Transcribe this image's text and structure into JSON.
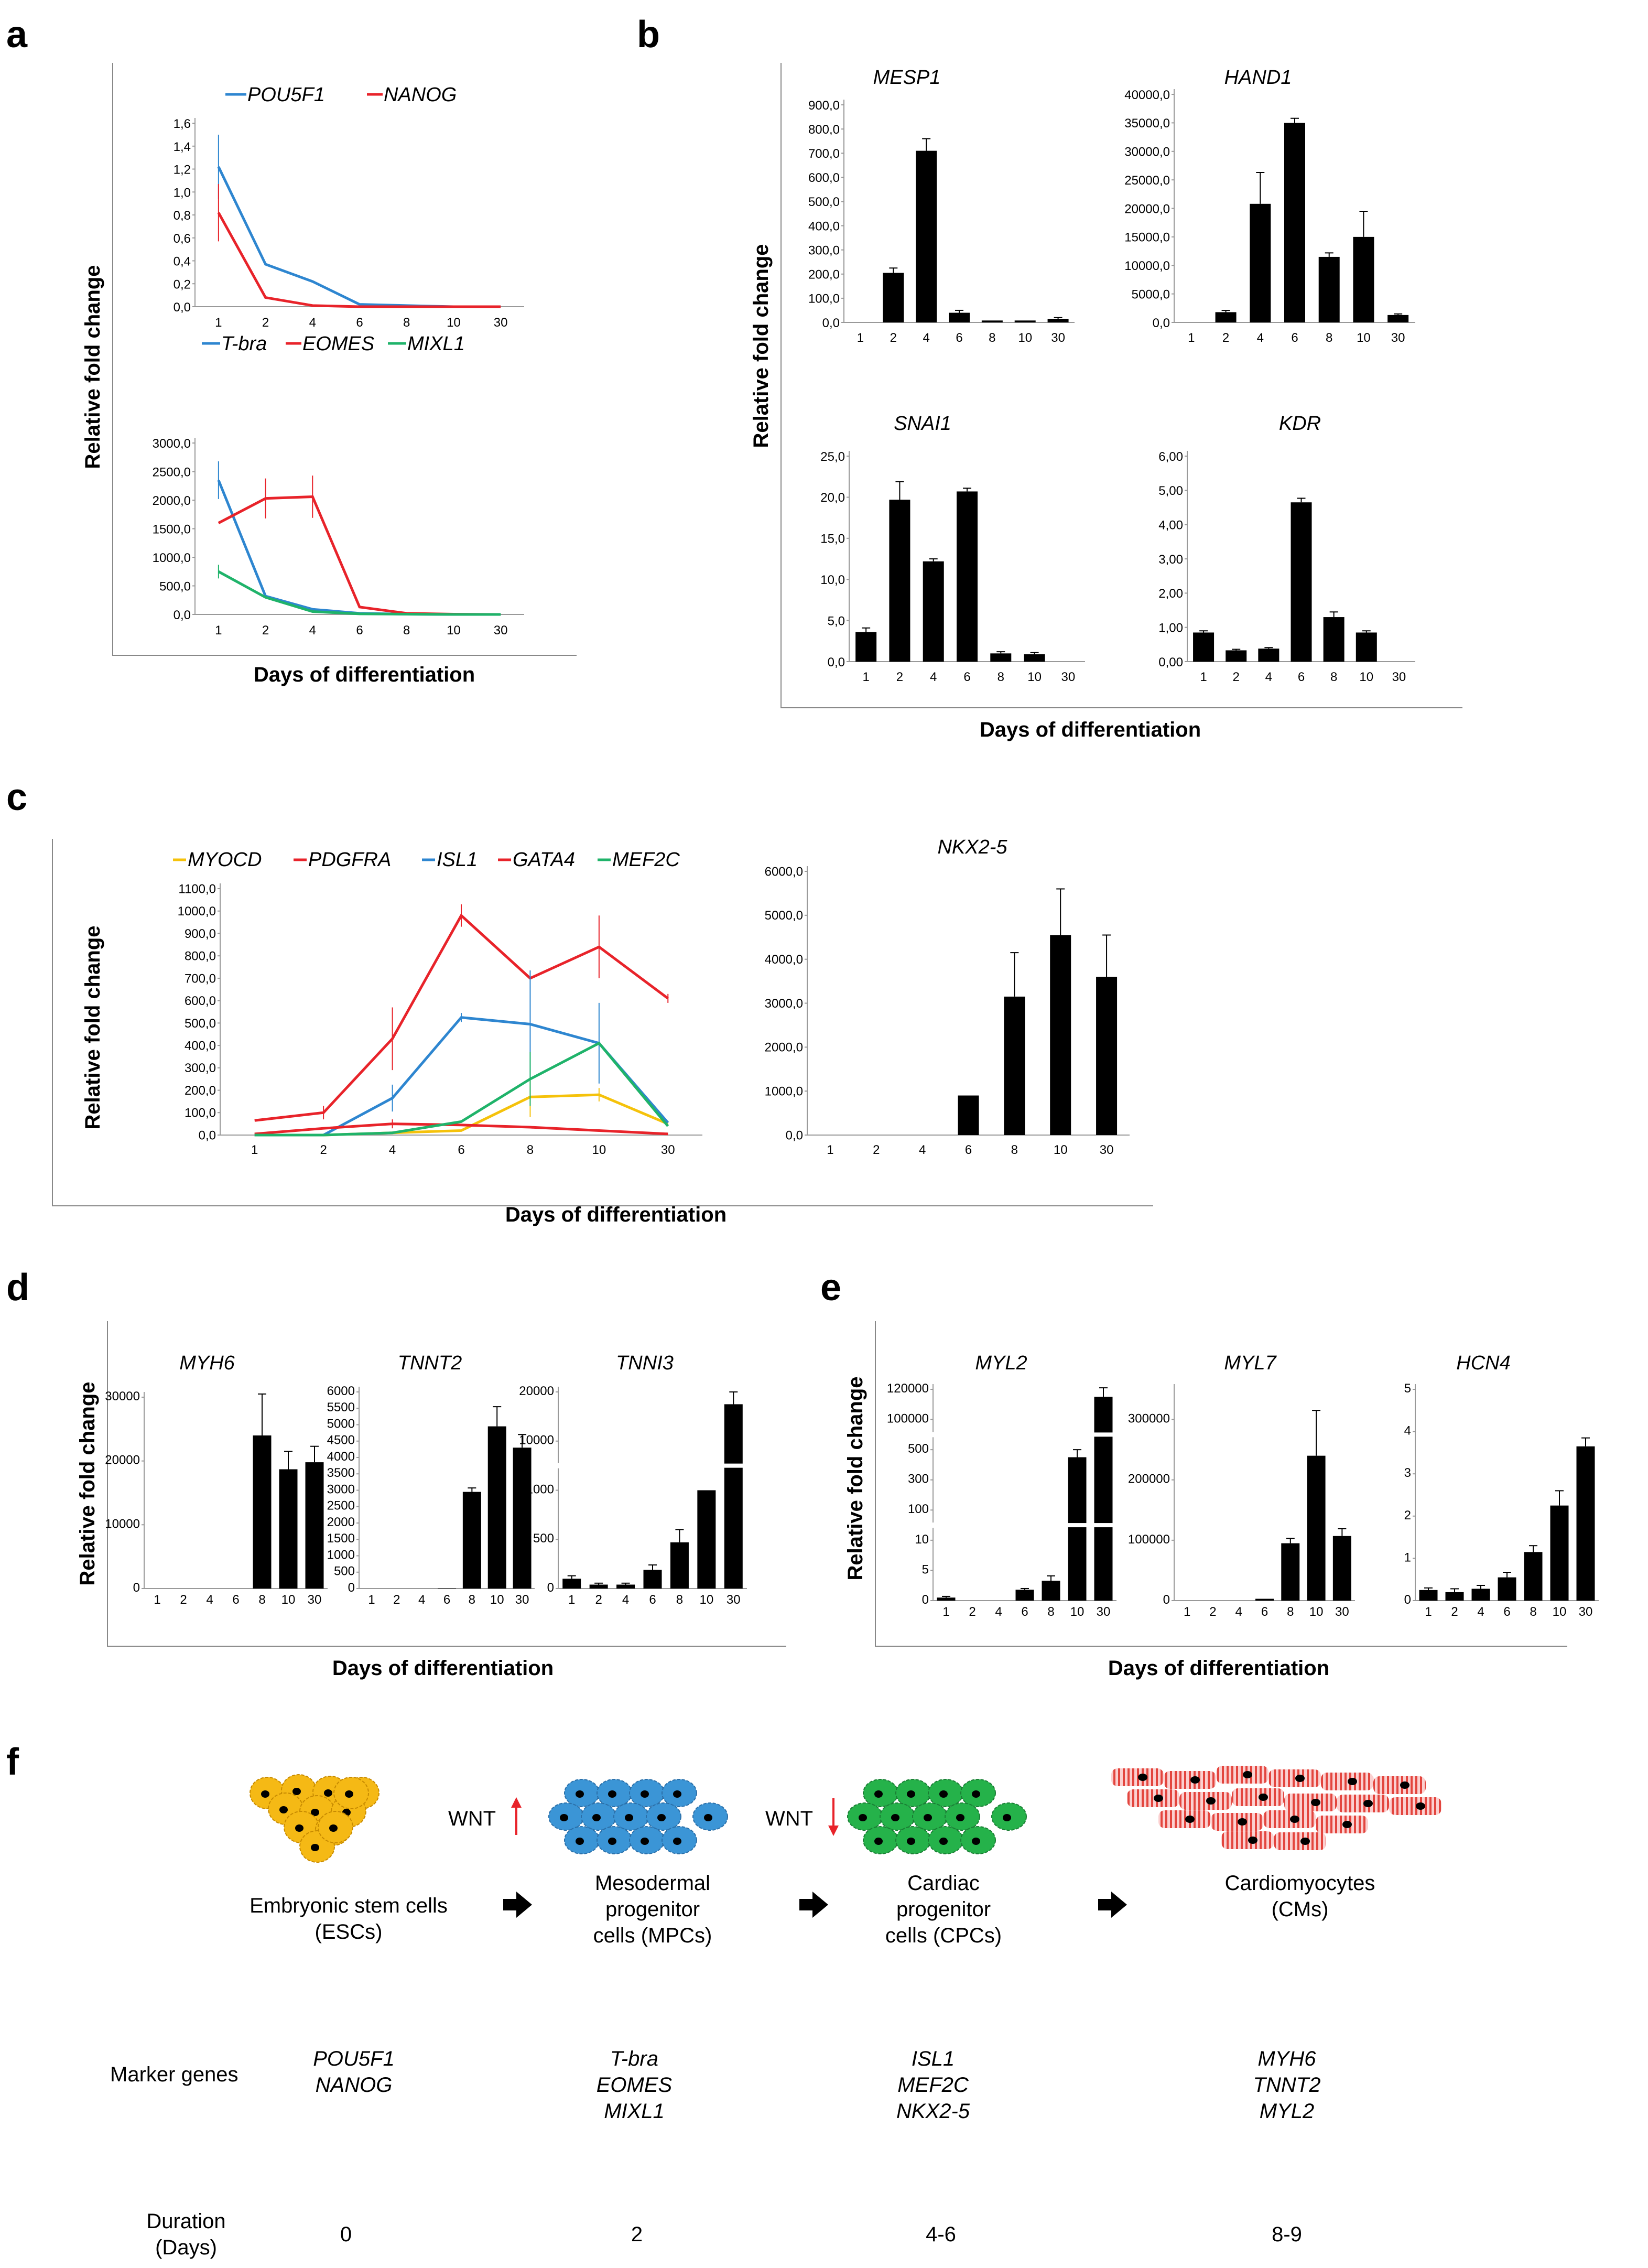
{
  "panel_labels": {
    "a": "a",
    "b": "b",
    "c": "c",
    "d": "d",
    "e": "e",
    "f": "f"
  },
  "axis_labels": {
    "y": "Relative fold change",
    "x": "Days of differentiation"
  },
  "colors": {
    "blue": "#2e86d0",
    "red": "#e8232a",
    "green": "#1fb36a",
    "yellow": "#f5c20b",
    "black": "#000000",
    "esc": "#f5b915",
    "mpc": "#3b95d6",
    "cpc": "#25b24a",
    "cm": "#f08c8c"
  },
  "chart_data": [
    {
      "id": "a1",
      "type": "line",
      "categories": [
        "1",
        "2",
        "4",
        "6",
        "8",
        "10",
        "30"
      ],
      "ylim": [
        0,
        1.6
      ],
      "yticks": [
        "0,0",
        "0,2",
        "0,4",
        "0,6",
        "0,8",
        "1,0",
        "1,2",
        "1,4",
        "1,6"
      ],
      "series": [
        {
          "name": "POU5F1",
          "color": "blue",
          "values": [
            1.22,
            0.37,
            0.22,
            0.02,
            0.01,
            0.0,
            0.0
          ],
          "err": [
            0.28,
            0,
            0,
            0,
            0,
            0,
            0
          ]
        },
        {
          "name": "NANOG",
          "color": "red",
          "values": [
            0.82,
            0.08,
            0.01,
            0.0,
            0.0,
            0.0,
            0.0
          ],
          "err": [
            0.25,
            0,
            0,
            0,
            0,
            0,
            0
          ]
        }
      ]
    },
    {
      "id": "a2",
      "type": "line",
      "categories": [
        "1",
        "2",
        "4",
        "6",
        "8",
        "10",
        "30"
      ],
      "ylim": [
        0,
        3000
      ],
      "yticks": [
        "0,0",
        "500,0",
        "1000,0",
        "1500,0",
        "2000,0",
        "2500,0",
        "3000,0"
      ],
      "series": [
        {
          "name": "T-bra",
          "color": "blue",
          "values": [
            2350,
            320,
            90,
            20,
            5,
            0,
            0
          ],
          "err": [
            330,
            0,
            0,
            0,
            0,
            0,
            0
          ]
        },
        {
          "name": "EOMES",
          "color": "red",
          "values": [
            1600,
            2030,
            2060,
            130,
            20,
            5,
            0
          ],
          "err": [
            0,
            350,
            370,
            0,
            0,
            0,
            0
          ]
        },
        {
          "name": "MIXL1",
          "color": "green",
          "values": [
            750,
            300,
            50,
            10,
            5,
            0,
            0
          ],
          "err": [
            120,
            0,
            0,
            0,
            0,
            0,
            0
          ]
        }
      ]
    },
    {
      "id": "b1",
      "type": "bar",
      "title": "MESP1",
      "categories": [
        "1",
        "2",
        "4",
        "6",
        "8",
        "10",
        "30"
      ],
      "ylim": [
        0,
        900
      ],
      "yticks": [
        "0,0",
        "100,0",
        "200,0",
        "300,0",
        "400,0",
        "500,0",
        "600,0",
        "700,0",
        "800,0",
        "900,0"
      ],
      "values": [
        0,
        205,
        710,
        40,
        8,
        8,
        15
      ],
      "err": [
        0,
        20,
        50,
        10,
        0,
        0,
        5
      ]
    },
    {
      "id": "b2",
      "type": "bar",
      "title": "HAND1",
      "categories": [
        "1",
        "2",
        "4",
        "6",
        "8",
        "10",
        "30"
      ],
      "ylim": [
        0,
        40000
      ],
      "yticks": [
        "0,0",
        "5000,0",
        "10000,0",
        "15000,0",
        "20000,0",
        "25000,0",
        "30000,0",
        "35000,0",
        "40000,0"
      ],
      "values": [
        0,
        1800,
        20800,
        35000,
        11500,
        15000,
        1300
      ],
      "err": [
        0,
        300,
        5500,
        800,
        700,
        4500,
        200
      ]
    },
    {
      "id": "b3",
      "type": "bar",
      "title": "SNAI1",
      "categories": [
        "1",
        "2",
        "4",
        "6",
        "8",
        "10",
        "30"
      ],
      "ylim": [
        0,
        25
      ],
      "yticks": [
        "0,0",
        "5,0",
        "10,0",
        "15,0",
        "20,0",
        "25,0"
      ],
      "values": [
        3.6,
        19.7,
        12.2,
        20.7,
        1.0,
        0.9,
        0
      ],
      "err": [
        0.5,
        2.2,
        0.3,
        0.4,
        0.2,
        0.2,
        0
      ]
    },
    {
      "id": "b4",
      "type": "bar",
      "title": "KDR",
      "categories": [
        "1",
        "2",
        "4",
        "6",
        "8",
        "10",
        "30"
      ],
      "ylim": [
        0,
        6
      ],
      "yticks": [
        "0,00",
        "1,00",
        "2,00",
        "3,00",
        "4,00",
        "5,00",
        "6,00"
      ],
      "values": [
        0.85,
        0.33,
        0.38,
        4.65,
        1.3,
        0.85,
        0
      ],
      "err": [
        0.05,
        0.03,
        0.03,
        0.12,
        0.15,
        0.05,
        0
      ]
    },
    {
      "id": "c1",
      "type": "line",
      "categories": [
        "1",
        "2",
        "4",
        "6",
        "8",
        "10",
        "30"
      ],
      "ylim": [
        0,
        1100
      ],
      "yticks": [
        "0,0",
        "100,0",
        "200,0",
        "300,0",
        "400,0",
        "500,0",
        "600,0",
        "700,0",
        "800,0",
        "900,0",
        "1000,0",
        "1100,0"
      ],
      "series": [
        {
          "name": "MYOCD",
          "color": "yellow",
          "values": [
            0,
            0,
            10,
            20,
            170,
            180,
            50
          ],
          "err": [
            0,
            0,
            0,
            0,
            90,
            30,
            0
          ]
        },
        {
          "name": "PDGFRA",
          "color": "red",
          "values": [
            65,
            100,
            430,
            980,
            700,
            840,
            610
          ],
          "err": [
            0,
            30,
            140,
            50,
            0,
            140,
            20
          ]
        },
        {
          "name": "ISL1",
          "color": "blue",
          "values": [
            0,
            0,
            165,
            525,
            495,
            410,
            55
          ],
          "err": [
            0,
            0,
            60,
            20,
            240,
            180,
            0
          ]
        },
        {
          "name": "GATA4",
          "color": "red",
          "values": [
            5,
            30,
            50,
            45,
            35,
            20,
            5
          ],
          "err": [
            0,
            0,
            20,
            0,
            0,
            0,
            0
          ]
        },
        {
          "name": "MEF2C",
          "color": "green",
          "values": [
            0,
            0,
            10,
            60,
            250,
            410,
            40
          ],
          "err": [
            0,
            0,
            0,
            0,
            120,
            0,
            0
          ]
        }
      ]
    },
    {
      "id": "c2",
      "type": "bar",
      "title": "NKX2-5",
      "categories": [
        "1",
        "2",
        "4",
        "6",
        "8",
        "10",
        "30"
      ],
      "ylim": [
        0,
        6000
      ],
      "yticks": [
        "0,0",
        "1000,0",
        "2000,0",
        "3000,0",
        "4000,0",
        "5000,0",
        "6000,0"
      ],
      "values": [
        0,
        0,
        0,
        900,
        3150,
        4550,
        3600
      ],
      "err": [
        0,
        0,
        0,
        0,
        1000,
        1050,
        950
      ]
    },
    {
      "id": "d1",
      "type": "bar",
      "title": "MYH6",
      "categories": [
        "1",
        "2",
        "4",
        "6",
        "8",
        "10",
        "30"
      ],
      "ylim": [
        0,
        30000
      ],
      "yticks": [
        "0",
        "10000",
        "20000",
        "30000"
      ],
      "values": [
        0,
        0,
        0,
        0,
        24000,
        18700,
        19800
      ],
      "err": [
        0,
        0,
        0,
        0,
        6500,
        2800,
        2500
      ]
    },
    {
      "id": "d2",
      "type": "bar",
      "title": "TNNT2",
      "categories": [
        "1",
        "2",
        "4",
        "6",
        "8",
        "10",
        "30"
      ],
      "ylim": [
        0,
        6000
      ],
      "yticks": [
        "0",
        "500",
        "1000",
        "1500",
        "2000",
        "2500",
        "3000",
        "3500",
        "4000",
        "4500",
        "5000",
        "5500",
        "6000"
      ],
      "values": [
        0,
        0,
        0,
        10,
        2950,
        4950,
        4300
      ],
      "err": [
        0,
        0,
        0,
        0,
        120,
        600,
        400
      ]
    },
    {
      "id": "d3",
      "type": "bar",
      "title": "TNNI3",
      "categories": [
        "1",
        "2",
        "4",
        "6",
        "8",
        "10",
        "30"
      ],
      "yticks": [
        "0",
        "500",
        "1000",
        "10000",
        "20000"
      ],
      "values": [
        100,
        40,
        40,
        190,
        470,
        1000,
        17500
      ],
      "err": [
        30,
        15,
        15,
        50,
        130,
        0,
        2500
      ],
      "broken_axis": true
    },
    {
      "id": "e1",
      "type": "bar",
      "title": "MYL2",
      "categories": [
        "1",
        "2",
        "4",
        "6",
        "8",
        "10",
        "30"
      ],
      "yticks": [
        "0",
        "5",
        "10",
        "100",
        "300",
        "500",
        "100000",
        "120000"
      ],
      "values": [
        0.5,
        0,
        0,
        1.8,
        3.3,
        450,
        115000
      ],
      "err": [
        0.2,
        0,
        0,
        0.2,
        0.8,
        60,
        12000
      ],
      "broken_axis": true
    },
    {
      "id": "e2",
      "type": "bar",
      "title": "MYL7",
      "categories": [
        "1",
        "2",
        "4",
        "6",
        "8",
        "10",
        "30"
      ],
      "ylim": [
        0,
        350000
      ],
      "yticks": [
        "0",
        "100000",
        "200000",
        "300000"
      ],
      "values": [
        0,
        0,
        0,
        3000,
        95000,
        240000,
        107000
      ],
      "err": [
        0,
        0,
        0,
        0,
        8000,
        75000,
        12000
      ]
    },
    {
      "id": "e3",
      "type": "bar",
      "title": "HCN4",
      "categories": [
        "1",
        "2",
        "4",
        "6",
        "8",
        "10",
        "30"
      ],
      "ylim": [
        0,
        5
      ],
      "yticks": [
        "0",
        "1",
        "2",
        "3",
        "4",
        "5"
      ],
      "values": [
        0.25,
        0.2,
        0.28,
        0.55,
        1.15,
        2.25,
        3.65
      ],
      "err": [
        0.05,
        0.08,
        0.08,
        0.12,
        0.15,
        0.35,
        0.2
      ]
    }
  ],
  "schematic": {
    "stages": [
      {
        "id": "esc",
        "name_line1": "Embryonic stem cells",
        "name_line2": "(ESCs)",
        "markers": [
          "POU5F1",
          "NANOG"
        ],
        "duration": "0"
      },
      {
        "id": "mpc",
        "name_lines": [
          "Mesodermal",
          "progenitor",
          "cells (MPCs)"
        ],
        "markers": [
          "T-bra",
          "EOMES",
          "MIXL1"
        ],
        "duration": "2"
      },
      {
        "id": "cpc",
        "name_lines": [
          "Cardiac",
          "progenitor",
          "cells (CPCs)"
        ],
        "markers": [
          "ISL1",
          "MEF2C",
          "NKX2-5"
        ],
        "duration": "4-6"
      },
      {
        "id": "cm",
        "name_line1": "Cardiomyocytes",
        "name_line2": "(CMs)",
        "markers": [
          "MYH6",
          "TNNT2",
          "MYL2"
        ],
        "duration": "8-9"
      }
    ],
    "wnt_label": "WNT",
    "marker_row_label": "Marker genes",
    "duration_label_line1": "Duration",
    "duration_label_line2": "(Days)"
  }
}
